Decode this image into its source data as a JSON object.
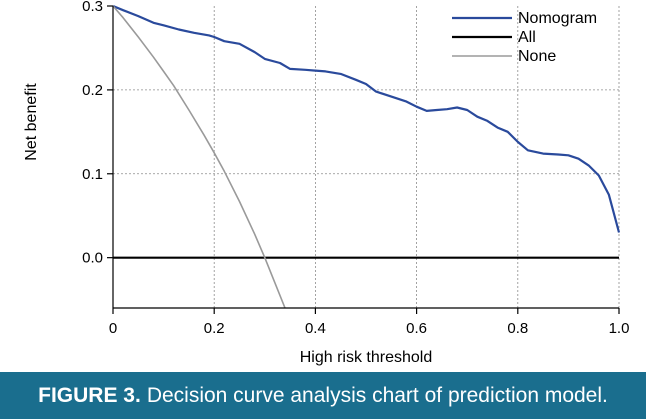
{
  "caption": {
    "label": "FIGURE 3.",
    "text": "Decision curve analysis chart of prediction model."
  },
  "chart_data": {
    "type": "line",
    "title": "",
    "xlabel": "High risk threshold",
    "ylabel": "Net benefit",
    "xlim": [
      0,
      1
    ],
    "ylim": [
      -0.06,
      0.3
    ],
    "x_ticks": [
      0,
      0.2,
      0.4,
      0.6,
      0.8,
      1
    ],
    "x_tick_labels": [
      "0",
      "0.2",
      "0.4",
      "0.6",
      "0.8",
      "1.0"
    ],
    "y_ticks": [
      0,
      0.1,
      0.2,
      0.3
    ],
    "y_tick_labels": [
      "0.0",
      "0.1",
      "0.2",
      "0.3"
    ],
    "grid": true,
    "legend_position": "top-right",
    "series": [
      {
        "name": "Nomogram",
        "color": "#2a4a9c",
        "x": [
          0,
          0.02,
          0.05,
          0.08,
          0.1,
          0.13,
          0.16,
          0.19,
          0.2,
          0.22,
          0.25,
          0.28,
          0.3,
          0.33,
          0.35,
          0.38,
          0.4,
          0.42,
          0.45,
          0.48,
          0.5,
          0.52,
          0.55,
          0.58,
          0.6,
          0.62,
          0.64,
          0.66,
          0.68,
          0.7,
          0.72,
          0.74,
          0.76,
          0.78,
          0.8,
          0.82,
          0.85,
          0.88,
          0.9,
          0.92,
          0.94,
          0.96,
          0.98,
          1.0
        ],
        "y": [
          0.3,
          0.295,
          0.288,
          0.28,
          0.277,
          0.272,
          0.268,
          0.265,
          0.263,
          0.258,
          0.255,
          0.245,
          0.237,
          0.232,
          0.225,
          0.224,
          0.223,
          0.222,
          0.219,
          0.212,
          0.207,
          0.198,
          0.192,
          0.186,
          0.18,
          0.175,
          0.176,
          0.177,
          0.179,
          0.176,
          0.168,
          0.163,
          0.155,
          0.15,
          0.138,
          0.128,
          0.124,
          0.123,
          0.122,
          0.118,
          0.11,
          0.098,
          0.075,
          0.03
        ]
      },
      {
        "name": "All",
        "color": "#000000",
        "x": [
          0,
          1
        ],
        "y": [
          0,
          0
        ]
      },
      {
        "name": "None",
        "color": "#9a9a9a",
        "x": [
          0,
          0.02,
          0.05,
          0.08,
          0.1,
          0.12,
          0.15,
          0.18,
          0.2,
          0.22,
          0.25,
          0.28,
          0.3,
          0.32,
          0.34
        ],
        "y": [
          0.3,
          0.286,
          0.263,
          0.239,
          0.222,
          0.205,
          0.176,
          0.146,
          0.125,
          0.103,
          0.067,
          0.028,
          0.0,
          -0.03,
          -0.06
        ]
      }
    ]
  }
}
